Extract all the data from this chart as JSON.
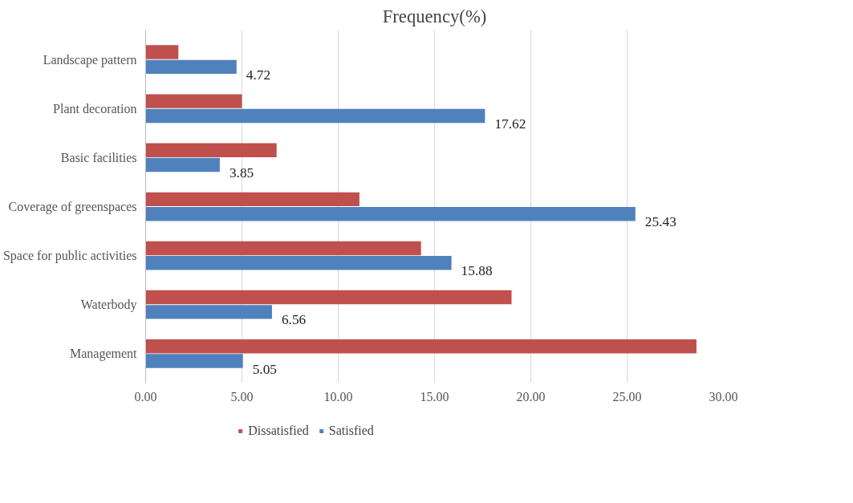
{
  "chart_data": {
    "type": "bar",
    "orientation": "horizontal",
    "title": "Frequency(%)",
    "categories": [
      "Landscape pattern",
      "Plant decoration",
      "Basic facilities",
      "Coverage of greenspaces",
      "Space for public activities",
      "Waterbody",
      "Management"
    ],
    "series": [
      {
        "name": "Dissatisfied",
        "color": "#c0504d",
        "values": [
          1.7,
          5.0,
          6.8,
          11.1,
          14.3,
          19.0,
          28.6
        ]
      },
      {
        "name": "Satisfied",
        "color": "#4f81bd",
        "values": [
          4.72,
          17.62,
          3.85,
          25.43,
          15.88,
          6.56,
          5.05
        ],
        "value_labels": [
          "4.72",
          "17.62",
          "3.85",
          "25.43",
          "15.88",
          "6.56",
          "5.05"
        ]
      }
    ],
    "xlim": [
      0,
      30
    ],
    "xticks": [
      {
        "value": 0,
        "label": "0.00"
      },
      {
        "value": 5,
        "label": "5.00"
      },
      {
        "value": 10,
        "label": "10.00"
      },
      {
        "value": 15,
        "label": "15.00"
      },
      {
        "value": 20,
        "label": "20.00"
      },
      {
        "value": 25,
        "label": "25.00"
      },
      {
        "value": 30,
        "label": "30.00"
      }
    ],
    "grid": "x",
    "legend": "bottom"
  }
}
